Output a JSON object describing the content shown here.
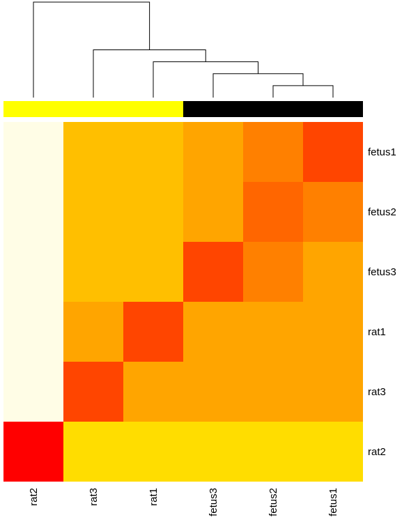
{
  "chart_data": {
    "type": "heatmap",
    "title": "",
    "xlabel": "",
    "ylabel": "",
    "columns": [
      "rat2",
      "rat3",
      "rat1",
      "fetus3",
      "fetus2",
      "fetus1"
    ],
    "rows": [
      "fetus1",
      "fetus2",
      "fetus3",
      "rat1",
      "rat3",
      "rat2"
    ],
    "cell_colors": [
      [
        "#FFFDE6",
        "#FFBF00",
        "#FFBF00",
        "#FFA500",
        "#FF8000",
        "#FF4500"
      ],
      [
        "#FFFDE6",
        "#FFBF00",
        "#FFBF00",
        "#FFA500",
        "#FF6600",
        "#FF8000"
      ],
      [
        "#FFFDE6",
        "#FFBF00",
        "#FFBF00",
        "#FF4500",
        "#FF8000",
        "#FFA500"
      ],
      [
        "#FFFDE6",
        "#FFA500",
        "#FF4500",
        "#FFA500",
        "#FFA500",
        "#FFA500"
      ],
      [
        "#FFFDE6",
        "#FF4500",
        "#FFA500",
        "#FFA500",
        "#FFA500",
        "#FFA500"
      ],
      [
        "#FF0000",
        "#FFDD00",
        "#FFDD00",
        "#FFDD00",
        "#FFDD00",
        "#FFDD00"
      ]
    ],
    "column_group_colors": [
      "#FFFF00",
      "#FFFF00",
      "#FFFF00",
      "#000000",
      "#000000",
      "#000000"
    ],
    "column_dendrogram": {
      "merges": [
        {
          "members": [
            "fetus2",
            "fetus1"
          ],
          "height": 1
        },
        {
          "members": [
            "fetus3",
            "fetus2",
            "fetus1"
          ],
          "height": 2
        },
        {
          "members": [
            "rat1",
            "fetus3",
            "fetus2",
            "fetus1"
          ],
          "height": 3
        },
        {
          "members": [
            "rat3",
            "rat1",
            "fetus3",
            "fetus2",
            "fetus1"
          ],
          "height": 4
        },
        {
          "members": [
            "rat2",
            "rat3",
            "rat1",
            "fetus3",
            "fetus2",
            "fetus1"
          ],
          "height": 8
        }
      ]
    }
  }
}
